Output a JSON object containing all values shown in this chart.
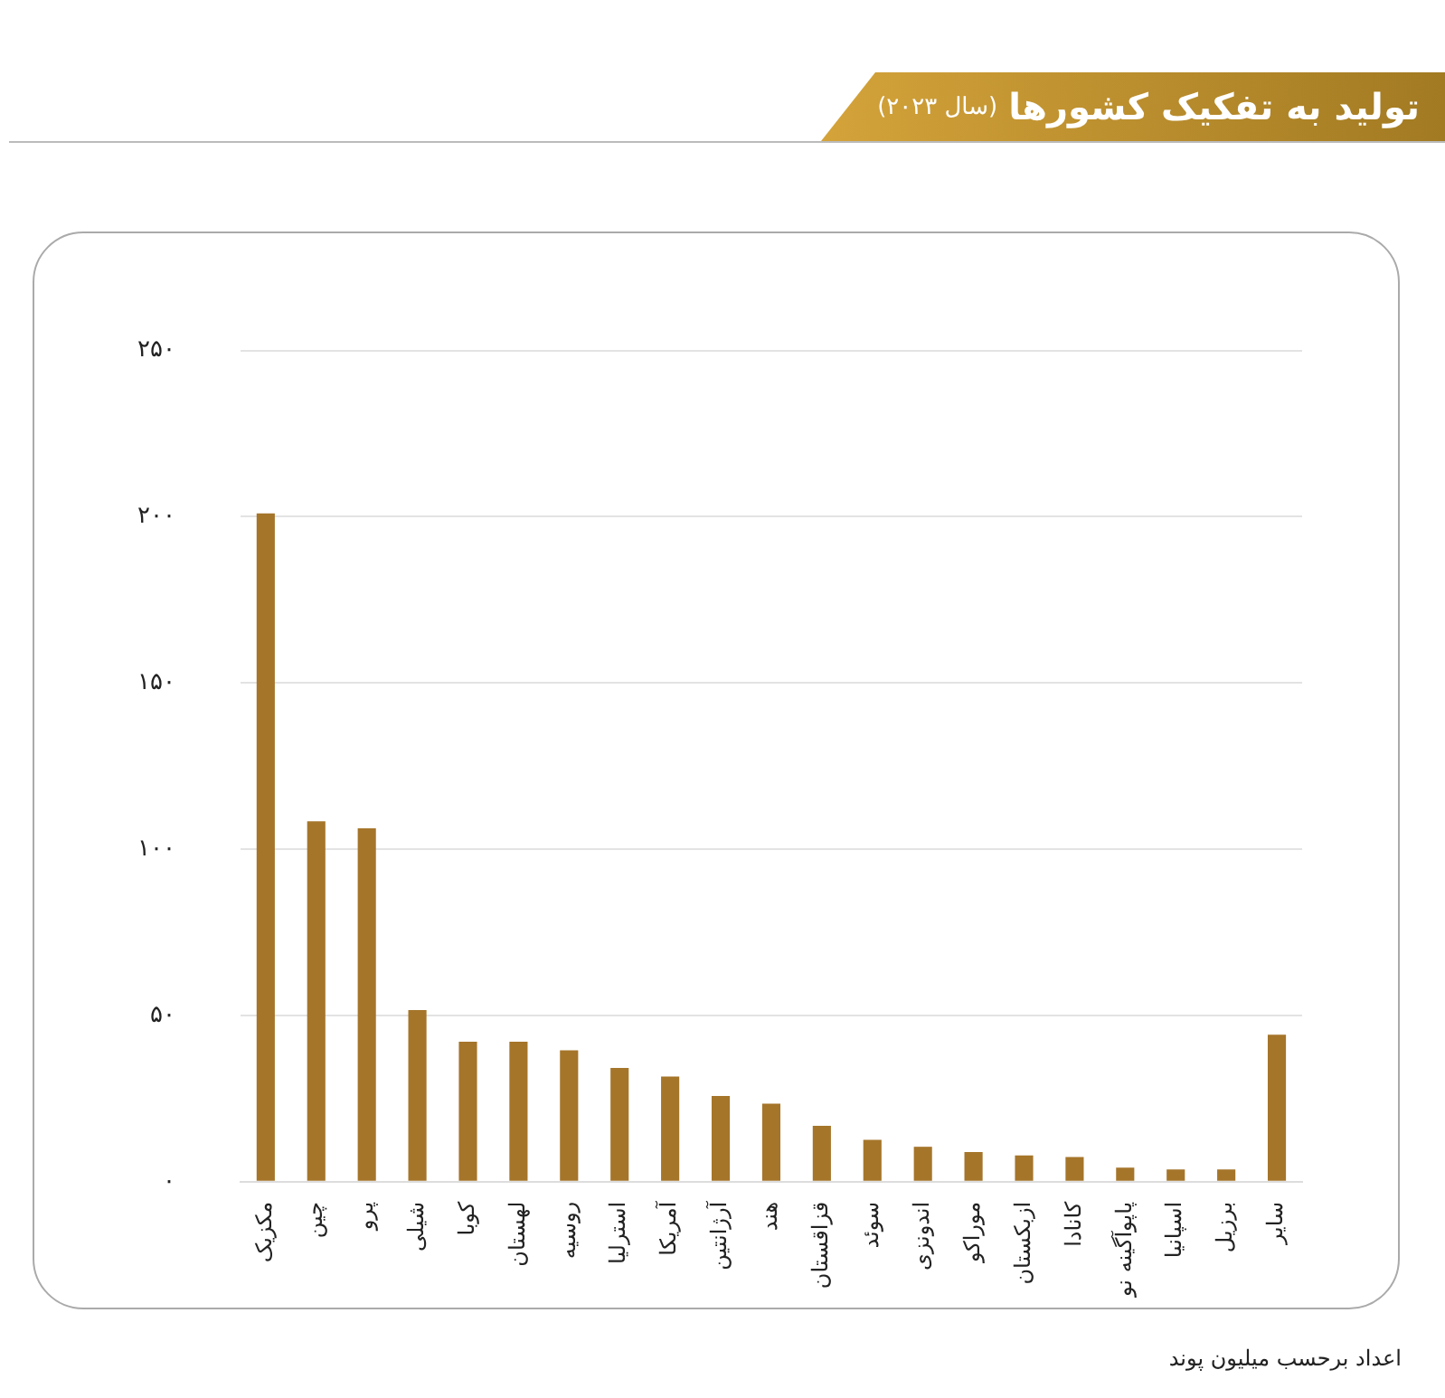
{
  "chart_data": {
    "type": "bar",
    "title": "تولید به تفکیک کشورها",
    "subtitle": "(سال ۲۰۲۳)",
    "categories": [
      "مکزیک",
      "چین",
      "پرو",
      "شیلی",
      "کوبا",
      "لهستان",
      "روسیه",
      "استرلیا",
      "آمریکا",
      "آرژانتین",
      "هند",
      "قزاقستان",
      "سوئد",
      "اندونزی",
      "موراکو",
      "ازبکستان",
      "کانادا",
      "پاپوآگینه نو",
      "اسپانیا",
      "برزیل",
      "سایر"
    ],
    "values": [
      201,
      108.4,
      106.3,
      51.6,
      42.1,
      42.1,
      39.5,
      34.2,
      31.6,
      25.8,
      23.5,
      16.8,
      12.6,
      10.5,
      8.9,
      7.9,
      7.4,
      4.2,
      3.7,
      3.7,
      44.2
    ],
    "color": "#a5752a",
    "ylim": [
      0,
      250
    ],
    "yticks": [
      {
        "value": 0,
        "label": "۰"
      },
      {
        "value": 50,
        "label": "۵۰"
      },
      {
        "value": 100,
        "label": "۱۰۰"
      },
      {
        "value": 150,
        "label": "۱۵۰"
      },
      {
        "value": 200,
        "label": "۲۰۰"
      },
      {
        "value": 250,
        "label": "۲۵۰"
      }
    ],
    "grid": "y",
    "annotations": [
      "اعداد برحسب میلیون پوند"
    ]
  }
}
